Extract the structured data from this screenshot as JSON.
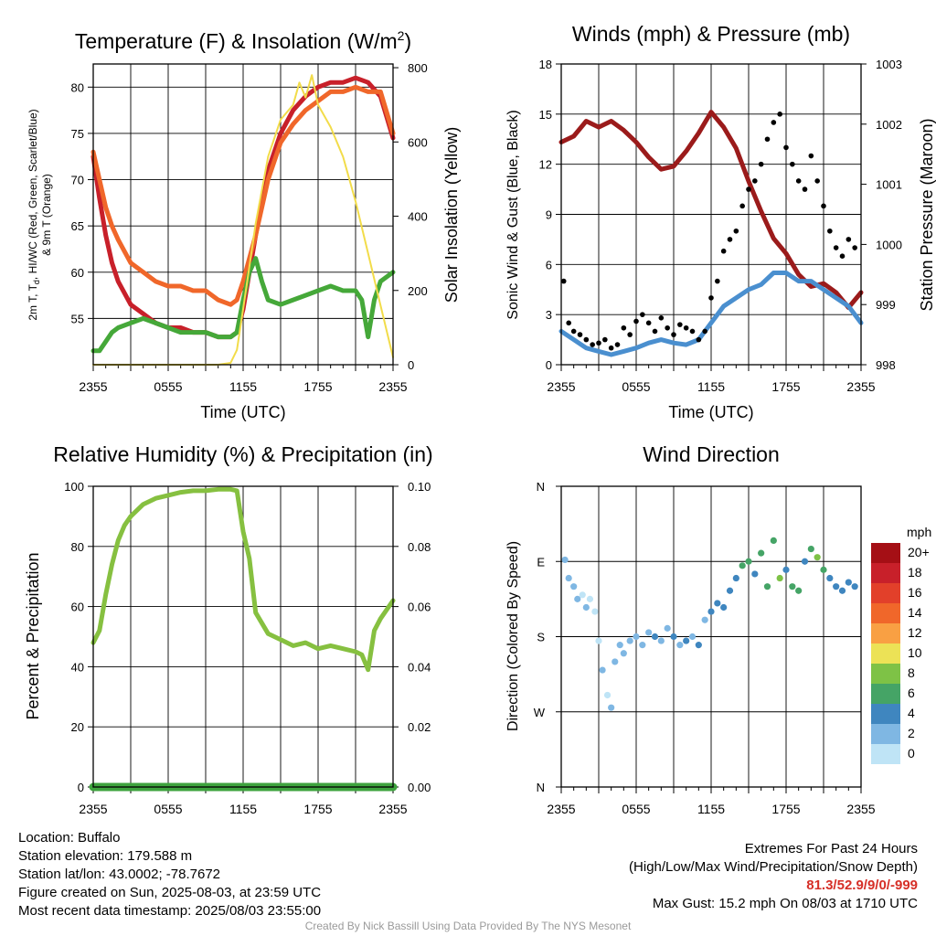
{
  "panels": {
    "temperature": {
      "title": "Temperature (F) & Insolation (W/m",
      "title_sup": "2",
      "title_close": ")",
      "ylabel_left_line1": "2m T, T",
      "ylabel_left_sub": "d",
      "ylabel_left_line1b": ", HI/WC (Red, Green, Scarlet/Blue)",
      "ylabel_left_line2": "& 9m T (Orange)",
      "ylabel_right": "Solar Insolation (Yellow)",
      "xlabel": "Time (UTC)"
    },
    "winds": {
      "title": "Winds (mph) & Pressure (mb)",
      "ylabel_left": "Sonic Wind & Gust (Blue, Black)",
      "ylabel_right": "Station Pressure (Maroon)",
      "xlabel": "Time (UTC)"
    },
    "humidity": {
      "title": "Relative Humidity (%) & Precipitation (in)",
      "ylabel_left": "Percent & Precipitation"
    },
    "direction": {
      "title": "Wind Direction",
      "ylabel_left": "Direction (Colored By Speed)",
      "legend_unit": "mph",
      "legend_labels": [
        "20+",
        "18",
        "16",
        "14",
        "12",
        "10",
        "8",
        "6",
        "4",
        "2",
        "0"
      ],
      "legend_colors": [
        "#a50f15",
        "#c8202a",
        "#e2402a",
        "#f0672a",
        "#f9a043",
        "#ece256",
        "#7ec246",
        "#45a466",
        "#3f86bf",
        "#7fb7e3",
        "#bfe4f6"
      ]
    }
  },
  "chart_data": [
    {
      "type": "line",
      "id": "temperature",
      "x_ticks": [
        "2355",
        "0555",
        "1155",
        "1755",
        "2355"
      ],
      "x_range_hours": [
        0,
        24
      ],
      "y_left_ticks": [
        55,
        60,
        65,
        70,
        75,
        80
      ],
      "y_left_range": [
        50,
        82.5
      ],
      "y_right_ticks": [
        0,
        200,
        400,
        600,
        800
      ],
      "y_right_range": [
        0,
        810
      ],
      "series": [
        {
          "axis": "left",
          "color": "#c8202a",
          "x": [
            0,
            0.5,
            1,
            1.5,
            2,
            3,
            4,
            5,
            6,
            7,
            8,
            9,
            10,
            11,
            11.5,
            12,
            13,
            14,
            15,
            16,
            17,
            18,
            19,
            20,
            21,
            22,
            23,
            24
          ],
          "y": [
            72.5,
            68,
            64,
            61,
            59,
            56.5,
            55.5,
            54.5,
            54,
            54,
            53.5,
            53.5,
            53,
            53,
            53.5,
            56,
            64,
            71,
            75,
            77.5,
            79,
            80,
            80.5,
            80.5,
            81,
            80.5,
            79,
            74.5
          ]
        },
        {
          "axis": "left",
          "color": "#f0672a",
          "x": [
            0,
            0.5,
            1,
            1.5,
            2,
            3,
            4,
            5,
            6,
            7,
            8,
            9,
            10,
            11,
            11.5,
            12,
            13,
            14,
            15,
            16,
            17,
            18,
            19,
            20,
            21,
            22,
            23,
            24
          ],
          "y": [
            73,
            70,
            67,
            65,
            63.5,
            61,
            60,
            59,
            58.5,
            58.5,
            58,
            58,
            57,
            56.5,
            57,
            59,
            64,
            70,
            74,
            76,
            77.5,
            78.5,
            79.5,
            79.5,
            80,
            79.5,
            79.5,
            75
          ]
        },
        {
          "axis": "left",
          "color": "#45a839",
          "x": [
            0,
            0.5,
            1,
            1.5,
            2,
            3,
            4,
            5,
            6,
            7,
            8,
            9,
            10,
            11,
            11.5,
            12,
            12.5,
            13,
            13.5,
            14,
            15,
            16,
            17,
            18,
            19,
            20,
            21,
            21.5,
            22,
            22.5,
            23,
            24
          ],
          "y": [
            51.5,
            51.5,
            52.5,
            53.5,
            54,
            54.5,
            55,
            54.5,
            54,
            53.5,
            53.5,
            53.5,
            53,
            53,
            53.5,
            57,
            60,
            61.5,
            59,
            57,
            56.5,
            57,
            57.5,
            58,
            58.5,
            58,
            58,
            57,
            53,
            57,
            59,
            60
          ]
        },
        {
          "axis": "right",
          "color": "#f2dc4a",
          "x": [
            0,
            2,
            4,
            6,
            8,
            10,
            11,
            11.5,
            12,
            13,
            14,
            15,
            16,
            16.5,
            17,
            17.5,
            18,
            19,
            20,
            21,
            22,
            23,
            24
          ],
          "y": [
            0,
            0,
            0,
            0,
            0,
            0,
            5,
            40,
            150,
            380,
            560,
            660,
            700,
            760,
            720,
            780,
            700,
            640,
            560,
            440,
            300,
            160,
            20
          ]
        }
      ]
    },
    {
      "type": "line",
      "id": "winds",
      "x_ticks": [
        "2355",
        "0555",
        "1155",
        "1755",
        "2355"
      ],
      "y_left_ticks": [
        0,
        3,
        6,
        9,
        12,
        15,
        18
      ],
      "y_left_range": [
        0,
        18
      ],
      "y_right_ticks": [
        998,
        999,
        1000,
        1001,
        1002,
        1003
      ],
      "y_right_range": [
        998,
        1003
      ],
      "series": [
        {
          "axis": "right",
          "color": "#9b1b1b",
          "x": [
            0,
            1,
            2,
            3,
            4,
            5,
            6,
            7,
            8,
            9,
            10,
            11,
            12,
            13,
            14,
            15,
            16,
            17,
            18,
            19,
            20,
            21,
            22,
            23,
            24
          ],
          "y": [
            1001.7,
            1001.8,
            1002.05,
            1001.95,
            1002.05,
            1001.9,
            1001.7,
            1001.45,
            1001.25,
            1001.3,
            1001.55,
            1001.85,
            1002.2,
            1001.95,
            1001.6,
            1001.05,
            1000.55,
            1000.1,
            999.85,
            999.5,
            999.3,
            999.35,
            999.2,
            998.95,
            999.2
          ]
        },
        {
          "axis": "left",
          "color": "#4a8fcf",
          "x": [
            0,
            1,
            2,
            3,
            4,
            5,
            6,
            7,
            8,
            9,
            10,
            11,
            12,
            13,
            14,
            15,
            16,
            17,
            18,
            19,
            20,
            21,
            22,
            23,
            24
          ],
          "y": [
            2,
            1.5,
            1,
            0.8,
            0.6,
            0.8,
            1,
            1.3,
            1.5,
            1.3,
            1.2,
            1.5,
            2.5,
            3.5,
            4,
            4.5,
            4.8,
            5.5,
            5.5,
            5,
            5,
            4.5,
            4,
            3.5,
            2.5
          ]
        },
        {
          "axis": "left",
          "type": "scatter",
          "color": "#000000",
          "x": [
            0.2,
            0.6,
            1,
            1.5,
            2,
            2.5,
            3,
            3.5,
            4,
            4.5,
            5,
            5.5,
            6,
            6.5,
            7,
            7.5,
            8,
            8.5,
            9,
            9.5,
            10,
            10.5,
            11,
            11.5,
            12,
            12.5,
            13,
            13.5,
            14,
            14.5,
            15,
            15.5,
            16,
            16.5,
            17,
            17.5,
            18,
            18.5,
            19,
            19.5,
            20,
            20.5,
            21,
            21.5,
            22,
            22.5,
            23,
            23.5
          ],
          "y": [
            5,
            2.5,
            2,
            1.8,
            1.5,
            1.2,
            1.3,
            1.5,
            1,
            1.2,
            2.2,
            1.8,
            2.6,
            3,
            2.5,
            2,
            2.8,
            2.2,
            1.8,
            2.4,
            2.2,
            2,
            1.5,
            2,
            4,
            5,
            6.8,
            7.5,
            8,
            9.5,
            10.5,
            11,
            12,
            13.5,
            14.5,
            15,
            13,
            12,
            11,
            10.5,
            12.5,
            11,
            9.5,
            8,
            7,
            6.5,
            7.5,
            7
          ]
        }
      ]
    },
    {
      "type": "line",
      "id": "humidity",
      "x_ticks": [
        "2355",
        "0555",
        "1155",
        "1755",
        "2355"
      ],
      "y_left_ticks": [
        0,
        20,
        40,
        60,
        80,
        100
      ],
      "y_left_range": [
        0,
        100
      ],
      "y_right_ticks": [
        "0.00",
        "0.02",
        "0.04",
        "0.06",
        "0.08",
        "0.10"
      ],
      "y_right_range": [
        0,
        0.1
      ],
      "series": [
        {
          "axis": "left",
          "color": "#86c040",
          "x": [
            0,
            0.5,
            1,
            1.5,
            2,
            2.5,
            3,
            4,
            5,
            6,
            7,
            8,
            9,
            10,
            11,
            11.5,
            12,
            12.5,
            13,
            14,
            15,
            16,
            17,
            18,
            19,
            20,
            21,
            21.5,
            22,
            22.5,
            23,
            24
          ],
          "y": [
            48,
            52,
            64,
            74,
            82,
            87,
            90,
            94,
            96,
            97,
            98,
            98.5,
            98.5,
            99,
            99,
            98.5,
            85,
            76,
            58,
            51,
            49,
            47,
            48,
            46,
            47,
            46,
            45,
            44,
            39,
            52,
            56,
            62
          ]
        },
        {
          "axis": "right",
          "color": "#3ea33e",
          "x": [
            0,
            24
          ],
          "y": [
            0,
            0
          ]
        }
      ]
    },
    {
      "type": "scatter",
      "id": "direction",
      "x_ticks": [
        "2355",
        "0555",
        "1155",
        "1755",
        "2355"
      ],
      "y_ticks": [
        "N",
        "W",
        "S",
        "E",
        "N"
      ],
      "y_range_degrees": [
        0,
        360
      ],
      "points": [
        {
          "x": 0.3,
          "dir": 272,
          "spd": 2
        },
        {
          "x": 0.6,
          "dir": 250,
          "spd": 2
        },
        {
          "x": 1,
          "dir": 240,
          "spd": 2
        },
        {
          "x": 1.3,
          "dir": 225,
          "spd": 1
        },
        {
          "x": 1.7,
          "dir": 230,
          "spd": 0
        },
        {
          "x": 2,
          "dir": 215,
          "spd": 1
        },
        {
          "x": 2.3,
          "dir": 225,
          "spd": 0
        },
        {
          "x": 2.7,
          "dir": 210,
          "spd": 0
        },
        {
          "x": 3,
          "dir": 175,
          "spd": 0
        },
        {
          "x": 3.3,
          "dir": 140,
          "spd": 1
        },
        {
          "x": 3.7,
          "dir": 110,
          "spd": 0
        },
        {
          "x": 4,
          "dir": 95,
          "spd": 1
        },
        {
          "x": 4.3,
          "dir": 150,
          "spd": 1
        },
        {
          "x": 4.7,
          "dir": 170,
          "spd": 2
        },
        {
          "x": 5,
          "dir": 160,
          "spd": 1
        },
        {
          "x": 5.5,
          "dir": 175,
          "spd": 2
        },
        {
          "x": 6,
          "dir": 180,
          "spd": 2
        },
        {
          "x": 6.5,
          "dir": 170,
          "spd": 1
        },
        {
          "x": 7,
          "dir": 185,
          "spd": 2
        },
        {
          "x": 7.5,
          "dir": 180,
          "spd": 3
        },
        {
          "x": 8,
          "dir": 175,
          "spd": 2
        },
        {
          "x": 8.5,
          "dir": 190,
          "spd": 1
        },
        {
          "x": 9,
          "dir": 180,
          "spd": 3
        },
        {
          "x": 9.5,
          "dir": 170,
          "spd": 2
        },
        {
          "x": 10,
          "dir": 175,
          "spd": 3
        },
        {
          "x": 10.5,
          "dir": 180,
          "spd": 2
        },
        {
          "x": 11,
          "dir": 170,
          "spd": 3
        },
        {
          "x": 11.5,
          "dir": 200,
          "spd": 2
        },
        {
          "x": 12,
          "dir": 210,
          "spd": 3
        },
        {
          "x": 12.5,
          "dir": 220,
          "spd": 3
        },
        {
          "x": 13,
          "dir": 215,
          "spd": 3
        },
        {
          "x": 13.5,
          "dir": 235,
          "spd": 4
        },
        {
          "x": 14,
          "dir": 250,
          "spd": 4
        },
        {
          "x": 14.5,
          "dir": 265,
          "spd": 5
        },
        {
          "x": 15,
          "dir": 270,
          "spd": 5
        },
        {
          "x": 15.5,
          "dir": 255,
          "spd": 4
        },
        {
          "x": 16,
          "dir": 280,
          "spd": 6
        },
        {
          "x": 16.5,
          "dir": 240,
          "spd": 6
        },
        {
          "x": 17,
          "dir": 295,
          "spd": 6
        },
        {
          "x": 17.5,
          "dir": 250,
          "spd": 7
        },
        {
          "x": 18,
          "dir": 260,
          "spd": 4
        },
        {
          "x": 18.5,
          "dir": 240,
          "spd": 5
        },
        {
          "x": 19,
          "dir": 235,
          "spd": 6
        },
        {
          "x": 19.5,
          "dir": 270,
          "spd": 4
        },
        {
          "x": 20,
          "dir": 285,
          "spd": 6
        },
        {
          "x": 20.5,
          "dir": 275,
          "spd": 7
        },
        {
          "x": 21,
          "dir": 260,
          "spd": 5
        },
        {
          "x": 21.5,
          "dir": 250,
          "spd": 4
        },
        {
          "x": 22,
          "dir": 240,
          "spd": 4
        },
        {
          "x": 22.5,
          "dir": 235,
          "spd": 3
        },
        {
          "x": 23,
          "dir": 245,
          "spd": 4
        },
        {
          "x": 23.5,
          "dir": 240,
          "spd": 4
        }
      ]
    }
  ],
  "footer": {
    "location": "Location: Buffalo",
    "elevation": "Station elevation: 179.588 m",
    "latlon": "Station lat/lon: 43.0002; -78.7672",
    "created": "Figure created on Sun, 2025-08-03, at 23:59 UTC",
    "recent": "Most recent data timestamp: 2025/08/03 23:55:00",
    "extremes_title": "Extremes For Past 24 Hours",
    "extremes_legend": "(High/Low/Max Wind/Precipitation/Snow Depth)",
    "extremes_values": "81.3/52.9/9/0/-999",
    "max_gust": "Max Gust: 15.2 mph On 08/03 at 1710 UTC",
    "credit": "Created By Nick Bassill Using Data Provided By The NYS Mesonet"
  }
}
